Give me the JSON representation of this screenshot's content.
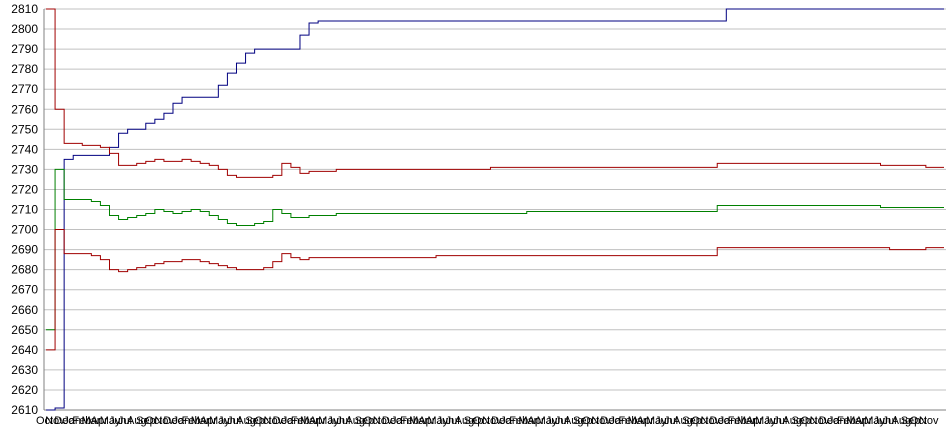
{
  "chart_data": {
    "type": "line",
    "title": "",
    "xlabel": "",
    "ylabel": "",
    "ylim": [
      2610,
      2810
    ],
    "yticks": [
      2610,
      2620,
      2630,
      2640,
      2650,
      2660,
      2670,
      2680,
      2690,
      2700,
      2710,
      2720,
      2730,
      2740,
      2750,
      2760,
      2770,
      2780,
      2790,
      2800,
      2810
    ],
    "grid": "horizontal",
    "legend": "none",
    "x_tick_labels": [
      "Oct",
      "Nov",
      "Dec",
      "Jan",
      "Feb",
      "Mar",
      "Apr",
      "May",
      "Jun",
      "Jul",
      "Aug",
      "Sep",
      "Oct",
      "Nov",
      "Dec",
      "Jan",
      "Feb",
      "Mar",
      "Apr",
      "May",
      "Jun",
      "Jul",
      "Aug",
      "Sep",
      "Oct",
      "Nov",
      "Dec",
      "Jan",
      "Feb",
      "Mar",
      "Apr",
      "May",
      "Jun",
      "Jul",
      "Aug",
      "Sep",
      "Oct",
      "Nov",
      "Dec",
      "Jan",
      "Feb",
      "Mar",
      "Apr",
      "May",
      "Jun",
      "Jul",
      "Aug",
      "Sep",
      "Oct",
      "Nov",
      "Dec",
      "Jan",
      "Feb",
      "Mar",
      "Apr",
      "May",
      "Jun",
      "Jul",
      "Aug",
      "Sep",
      "Oct",
      "Nov",
      "Dec",
      "Jan",
      "Feb",
      "Mar",
      "Apr",
      "May",
      "Jun",
      "Jul",
      "Aug",
      "Sep",
      "Oct",
      "Nov",
      "Dec",
      "Jan",
      "Feb",
      "Mar",
      "Apr",
      "May",
      "Jun",
      "Jul",
      "Aug",
      "Sep",
      "Oct",
      "Nov",
      "Dec",
      "Jan",
      "Feb",
      "Mar",
      "Apr",
      "May",
      "Jun",
      "Jul",
      "Aug",
      "Sep",
      "Oct",
      "Nov"
    ],
    "x_count": 100,
    "series": [
      {
        "color": "#000080",
        "values": [
          2610,
          2611,
          2735,
          2737,
          2737,
          2737,
          2737,
          2741,
          2748,
          2750,
          2750,
          2753,
          2755,
          2758,
          2763,
          2766,
          2766,
          2766,
          2766,
          2772,
          2778,
          2783,
          2788,
          2790,
          2790,
          2790,
          2790,
          2790,
          2797,
          2803,
          2804,
          2804,
          2804,
          2804,
          2804,
          2804,
          2804,
          2804,
          2804,
          2804,
          2804,
          2804,
          2804,
          2804,
          2804,
          2804,
          2804,
          2804,
          2804,
          2804,
          2804,
          2804,
          2804,
          2804,
          2804,
          2804,
          2804,
          2804,
          2804,
          2804,
          2804,
          2804,
          2804,
          2804,
          2804,
          2804,
          2804,
          2804,
          2804,
          2804,
          2804,
          2804,
          2804,
          2804,
          2804,
          2810,
          2810,
          2810,
          2810,
          2810,
          2810,
          2810,
          2810,
          2810,
          2810,
          2810,
          2810,
          2810,
          2810,
          2810,
          2810,
          2810,
          2810,
          2810,
          2810,
          2810,
          2810,
          2810,
          2810,
          2810
        ]
      },
      {
        "color": "#a00000",
        "values": [
          2810,
          2760,
          2743,
          2743,
          2742,
          2742,
          2741,
          2738,
          2732,
          2732,
          2733,
          2734,
          2735,
          2734,
          2734,
          2735,
          2734,
          2733,
          2732,
          2730,
          2727,
          2726,
          2726,
          2726,
          2726,
          2727,
          2733,
          2731,
          2728,
          2729,
          2729,
          2729,
          2730,
          2730,
          2730,
          2730,
          2730,
          2730,
          2730,
          2730,
          2730,
          2730,
          2730,
          2730,
          2730,
          2730,
          2730,
          2730,
          2730,
          2731,
          2731,
          2731,
          2731,
          2731,
          2731,
          2731,
          2731,
          2731,
          2731,
          2731,
          2731,
          2731,
          2731,
          2731,
          2731,
          2731,
          2731,
          2731,
          2731,
          2731,
          2731,
          2731,
          2731,
          2731,
          2733,
          2733,
          2733,
          2733,
          2733,
          2733,
          2733,
          2733,
          2733,
          2733,
          2733,
          2733,
          2733,
          2733,
          2733,
          2733,
          2733,
          2733,
          2732,
          2732,
          2732,
          2732,
          2732,
          2731,
          2731,
          2731
        ]
      },
      {
        "color": "#008000",
        "values": [
          2650,
          2730,
          2715,
          2715,
          2715,
          2714,
          2712,
          2707,
          2705,
          2706,
          2707,
          2708,
          2710,
          2709,
          2708,
          2709,
          2710,
          2709,
          2707,
          2705,
          2703,
          2702,
          2702,
          2703,
          2704,
          2710,
          2708,
          2706,
          2706,
          2707,
          2707,
          2707,
          2708,
          2708,
          2708,
          2708,
          2708,
          2708,
          2708,
          2708,
          2708,
          2708,
          2708,
          2708,
          2708,
          2708,
          2708,
          2708,
          2708,
          2708,
          2708,
          2708,
          2708,
          2709,
          2709,
          2709,
          2709,
          2709,
          2709,
          2709,
          2709,
          2709,
          2709,
          2709,
          2709,
          2709,
          2709,
          2709,
          2709,
          2709,
          2709,
          2709,
          2709,
          2709,
          2712,
          2712,
          2712,
          2712,
          2712,
          2712,
          2712,
          2712,
          2712,
          2712,
          2712,
          2712,
          2712,
          2712,
          2712,
          2712,
          2712,
          2712,
          2711,
          2711,
          2711,
          2711,
          2711,
          2711,
          2711,
          2711
        ]
      },
      {
        "color": "#a00000",
        "values": [
          2640,
          2700,
          2688,
          2688,
          2688,
          2687,
          2685,
          2680,
          2679,
          2680,
          2681,
          2682,
          2683,
          2684,
          2684,
          2685,
          2685,
          2684,
          2683,
          2682,
          2681,
          2680,
          2680,
          2680,
          2681,
          2684,
          2688,
          2686,
          2685,
          2686,
          2686,
          2686,
          2686,
          2686,
          2686,
          2686,
          2686,
          2686,
          2686,
          2686,
          2686,
          2686,
          2686,
          2687,
          2687,
          2687,
          2687,
          2687,
          2687,
          2687,
          2687,
          2687,
          2687,
          2687,
          2687,
          2687,
          2687,
          2687,
          2687,
          2687,
          2687,
          2687,
          2687,
          2687,
          2687,
          2687,
          2687,
          2687,
          2687,
          2687,
          2687,
          2687,
          2687,
          2687,
          2691,
          2691,
          2691,
          2691,
          2691,
          2691,
          2691,
          2691,
          2691,
          2691,
          2691,
          2691,
          2691,
          2691,
          2691,
          2691,
          2691,
          2691,
          2691,
          2690,
          2690,
          2690,
          2690,
          2691,
          2691,
          2691
        ]
      }
    ]
  }
}
